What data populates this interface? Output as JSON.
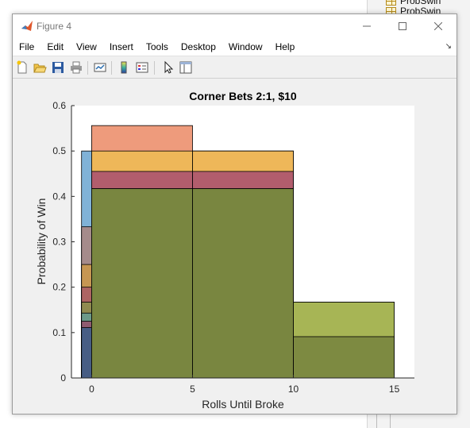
{
  "background_app": {
    "items": [
      {
        "label": "ProbSwin"
      },
      {
        "label": "ProbSwin"
      }
    ]
  },
  "window": {
    "title": "Figure 4",
    "controls": {
      "minimize": "—",
      "maximize": "☐",
      "close": "✕"
    }
  },
  "menu": {
    "items": [
      {
        "label": "File"
      },
      {
        "label": "Edit"
      },
      {
        "label": "View"
      },
      {
        "label": "Insert"
      },
      {
        "label": "Tools"
      },
      {
        "label": "Desktop"
      },
      {
        "label": "Window"
      },
      {
        "label": "Help"
      }
    ],
    "dock_arrow": "↘"
  },
  "toolbar": {
    "icons": [
      "new-figure-icon",
      "open-file-icon",
      "save-icon",
      "print-icon",
      "link-plot-icon",
      "colorbar-icon",
      "legend-icon",
      "pointer-icon",
      "property-editor-icon"
    ]
  },
  "chart_data": {
    "type": "bar",
    "title": "Corner Bets 2:1, $10",
    "xlabel": "Rolls Until Broke",
    "ylabel": "Probability of Win",
    "xlim": [
      -1,
      16
    ],
    "ylim": [
      0,
      0.6
    ],
    "xticks": [
      "0",
      "5",
      "10",
      "15"
    ],
    "xtick_values": [
      0,
      5,
      10,
      15
    ],
    "yticks": [
      "0",
      "0.1",
      "0.2",
      "0.3",
      "0.4",
      "0.5",
      "0.6"
    ],
    "ytick_values": [
      0,
      0.1,
      0.2,
      0.3,
      0.4,
      0.5,
      0.6
    ],
    "grid": false,
    "colors": {
      "blue": "#4F94C7",
      "orange": "#E8744A",
      "yellow": "#EEC24C",
      "purple": "#9B3A75",
      "green": "#8CBF46",
      "olive": "#6E7A3A",
      "dark": "#1F4F7A"
    },
    "series": [
      {
        "values": [
          {
            "x0": -0.5,
            "x1": 0,
            "y": 0.5
          }
        ],
        "color": "#4F94C7"
      },
      {
        "values": [
          {
            "x0": -0.5,
            "x1": 0,
            "y": 0.333
          }
        ],
        "color": "#B37B6E"
      },
      {
        "values": [
          {
            "x0": -0.5,
            "x1": 0,
            "y": 0.25
          }
        ],
        "color": "#D39A3B"
      },
      {
        "values": [
          {
            "x0": -0.5,
            "x1": 0,
            "y": 0.2
          }
        ],
        "color": "#A4506A"
      },
      {
        "values": [
          {
            "x0": -0.5,
            "x1": 0,
            "y": 0.167
          }
        ],
        "color": "#85994A"
      },
      {
        "values": [
          {
            "x0": -0.5,
            "x1": 0,
            "y": 0.143
          }
        ],
        "color": "#5E9FA0"
      },
      {
        "values": [
          {
            "x0": -0.5,
            "x1": 0,
            "y": 0.125
          }
        ],
        "color": "#9C4266"
      },
      {
        "values": [
          {
            "x0": -0.5,
            "x1": 0,
            "y": 0.111
          }
        ],
        "color": "#2B5E8C"
      },
      {
        "values": [
          {
            "x0": 0,
            "x1": 5,
            "y": 0.556
          },
          {
            "x0": 5,
            "x1": 10,
            "y": 0.5
          },
          {
            "x0": 10,
            "x1": 15,
            "y": 0.167
          }
        ],
        "color": "#E8744A"
      },
      {
        "values": [
          {
            "x0": 0,
            "x1": 5,
            "y": 0.5
          },
          {
            "x0": 5,
            "x1": 10,
            "y": 0.5
          }
        ],
        "color": "#EEC24C"
      },
      {
        "values": [
          {
            "x0": 0,
            "x1": 5,
            "y": 0.455
          },
          {
            "x0": 5,
            "x1": 10,
            "y": 0.455
          }
        ],
        "color": "#9B3A75"
      },
      {
        "values": [
          {
            "x0": 0,
            "x1": 5,
            "y": 0.417
          },
          {
            "x0": 5,
            "x1": 10,
            "y": 0.417
          },
          {
            "x0": 10,
            "x1": 15,
            "y": 0.167
          }
        ],
        "color": "#8CBF46"
      },
      {
        "values": [
          {
            "x0": 0,
            "x1": 5,
            "y": 0.417
          },
          {
            "x0": 5,
            "x1": 10,
            "y": 0.417
          },
          {
            "x0": 10,
            "x1": 15,
            "y": 0.091
          }
        ],
        "color": "#6E7A3A"
      }
    ]
  }
}
